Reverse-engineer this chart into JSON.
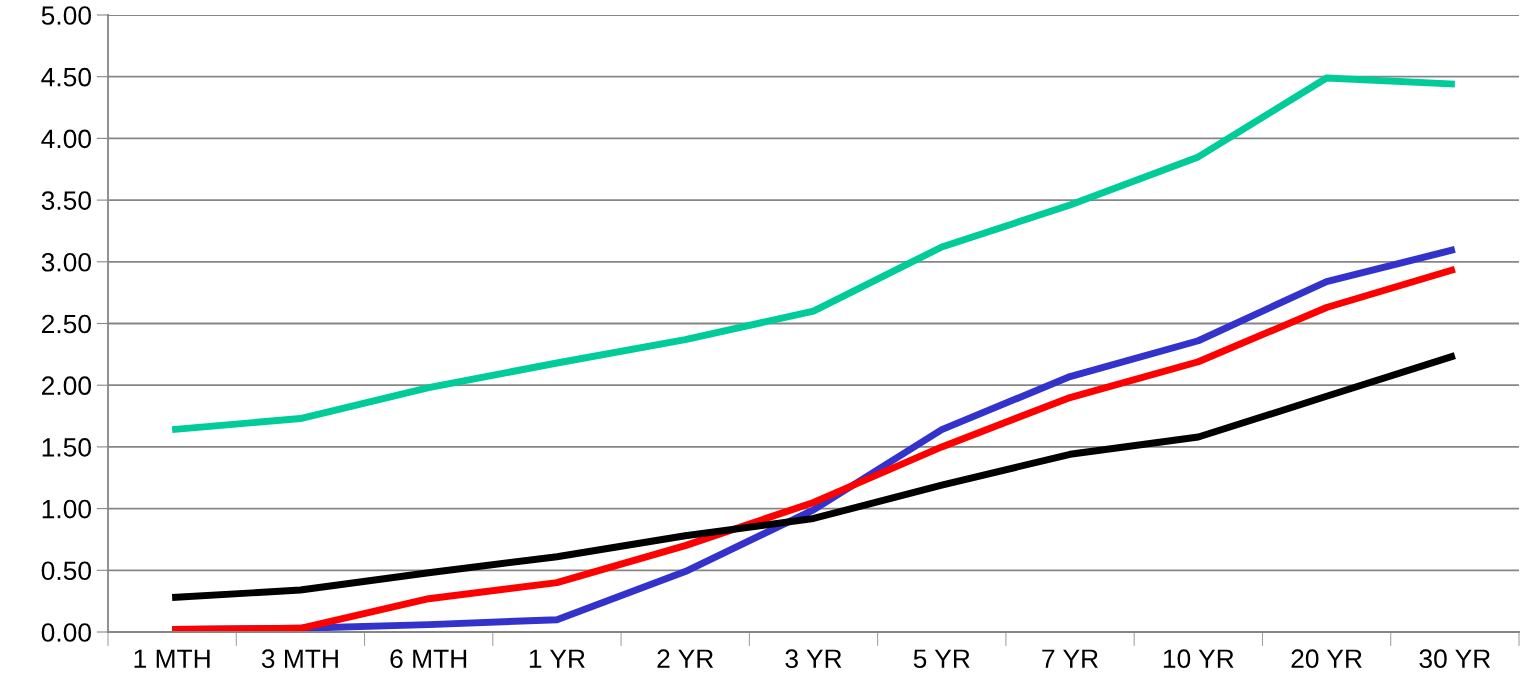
{
  "chart_data": {
    "type": "line",
    "categories": [
      "1 MTH",
      "3 MTH",
      "6 MTH",
      "1 YR",
      "2 YR",
      "3 YR",
      "5 YR",
      "7 YR",
      "10 YR",
      "20 YR",
      "30 YR"
    ],
    "series": [
      {
        "color": "#00cc99",
        "values": [
          1.64,
          1.73,
          1.98,
          2.18,
          2.37,
          2.6,
          3.12,
          3.46,
          3.85,
          4.49,
          4.44
        ]
      },
      {
        "color": "#3333cc",
        "values": [
          0.02,
          0.03,
          0.06,
          0.1,
          0.49,
          0.99,
          1.64,
          2.07,
          2.36,
          2.84,
          3.1
        ]
      },
      {
        "color": "#ff0000",
        "values": [
          0.02,
          0.03,
          0.27,
          0.4,
          0.7,
          1.05,
          1.5,
          1.9,
          2.19,
          2.63,
          2.94
        ]
      },
      {
        "color": "#000000",
        "values": [
          0.28,
          0.34,
          0.48,
          0.61,
          0.78,
          0.92,
          1.19,
          1.44,
          1.58,
          1.91,
          2.24
        ]
      }
    ],
    "ylim": [
      0,
      5
    ],
    "yticks": [
      {
        "value": 0,
        "label": "0.00"
      },
      {
        "value": 0.5,
        "label": "0.50"
      },
      {
        "value": 1,
        "label": "1.00"
      },
      {
        "value": 1.5,
        "label": "1.50"
      },
      {
        "value": 2,
        "label": "2.00"
      },
      {
        "value": 2.5,
        "label": "2.50"
      },
      {
        "value": 3,
        "label": "3.00"
      },
      {
        "value": 3.5,
        "label": "3.50"
      },
      {
        "value": 4,
        "label": "4.00"
      },
      {
        "value": 4.5,
        "label": "4.50"
      },
      {
        "value": 5,
        "label": "5.00"
      }
    ],
    "grid": "y",
    "marker": "none",
    "line_style": "solid"
  }
}
